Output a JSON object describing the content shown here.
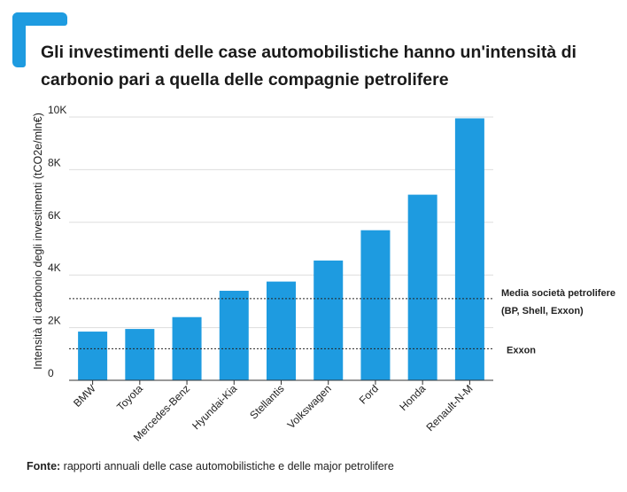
{
  "title": "Gli investimenti delle case automobilistiche hanno un'intensità di carbonio pari a quella delle compagnie petrolifere",
  "source": {
    "label": "Fonte:",
    "text": " rapporti annuali delle case automobilistiche e delle major petrolifere"
  },
  "colors": {
    "accent": "#1e9be0",
    "bar": "#1e9be0",
    "grid": "#dddddd"
  },
  "chart_data": {
    "type": "bar",
    "title": "Gli investimenti delle case automobilistiche hanno un'intensità di carbonio pari a quella delle compagnie petrolifere",
    "xlabel": "",
    "ylabel": "Intensità di carbonio degli investimenti (tCO2e/mln€)",
    "categories": [
      "BMW",
      "Toyota",
      "Mercedes-Benz",
      "Hyundai-Kia",
      "Stellantis",
      "Volkswagen",
      "Ford",
      "Honda",
      "Renault-N-M"
    ],
    "values": [
      1850,
      1950,
      2400,
      3400,
      3750,
      4550,
      5700,
      7050,
      9950
    ],
    "ylim": [
      0,
      10000
    ],
    "yticks": [
      0,
      2000,
      4000,
      6000,
      8000,
      10000
    ],
    "ytick_labels": [
      "0",
      "2K",
      "4K",
      "6K",
      "8K",
      "10K"
    ],
    "grid": true,
    "reference_lines": [
      {
        "value": 3100,
        "label_lines": [
          "Media società petrolifere",
          "(BP, Shell, Exxon)"
        ]
      },
      {
        "value": 1200,
        "label_lines": [
          "Exxon"
        ]
      }
    ]
  }
}
